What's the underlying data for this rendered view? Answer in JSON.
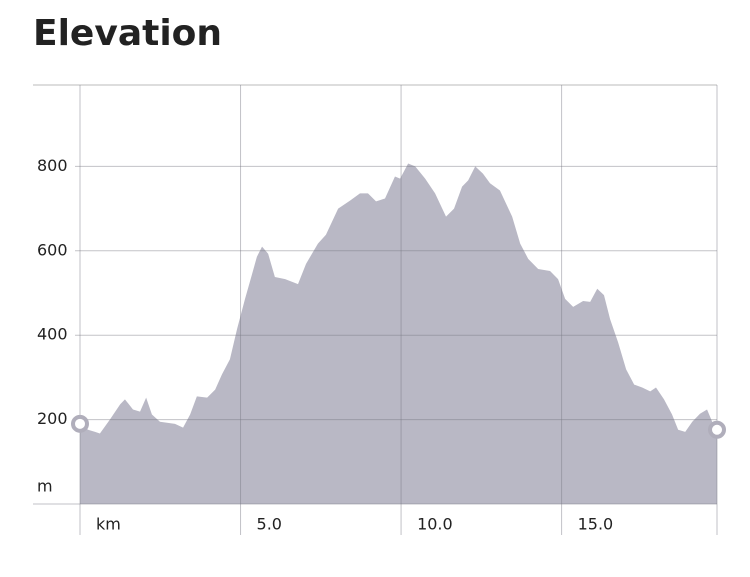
{
  "chart_data": {
    "type": "area",
    "title": "Elevation",
    "color": "#b9b8c5",
    "grid": true,
    "x": [
      0,
      0.25,
      0.47,
      0.62,
      0.93,
      1.25,
      1.4,
      1.65,
      1.87,
      2.06,
      2.24,
      2.49,
      2.96,
      3.21,
      3.43,
      3.64,
      3.96,
      4.21,
      4.42,
      4.67,
      4.89,
      5.14,
      5.36,
      5.51,
      5.67,
      5.86,
      6.07,
      6.39,
      6.79,
      7.04,
      7.41,
      7.66,
      8.04,
      8.41,
      8.72,
      8.97,
      9.22,
      9.5,
      9.81,
      9.97,
      10.22,
      10.44,
      10.75,
      11.06,
      11.4,
      11.65,
      11.9,
      12.09,
      12.31,
      12.55,
      12.77,
      13.08,
      13.46,
      13.71,
      13.96,
      14.27,
      14.64,
      14.89,
      15.11,
      15.36,
      15.67,
      15.89,
      16.11,
      16.32,
      16.51,
      16.76,
      17.01,
      17.26,
      17.51,
      17.76,
      17.94,
      18.19,
      18.44,
      18.63,
      18.85,
      19.07,
      19.31,
      19.53,
      19.69,
      19.84
    ],
    "values": [
      190,
      176,
      171,
      167,
      200,
      236,
      248,
      224,
      219,
      252,
      212,
      195,
      190,
      181,
      212,
      255,
      252,
      271,
      307,
      343,
      414,
      486,
      545,
      586,
      610,
      593,
      538,
      533,
      521,
      569,
      617,
      638,
      700,
      719,
      736,
      736,
      717,
      724,
      776,
      771,
      807,
      800,
      771,
      736,
      681,
      700,
      752,
      767,
      800,
      783,
      760,
      743,
      681,
      617,
      581,
      557,
      552,
      533,
      486,
      467,
      481,
      479,
      510,
      495,
      438,
      383,
      319,
      283,
      276,
      267,
      276,
      248,
      212,
      176,
      171,
      195,
      214,
      224,
      195,
      176
    ],
    "xlim": [
      0,
      19.84
    ],
    "ylim": [
      0,
      1000
    ],
    "xticks": [
      {
        "value": 0,
        "label": "km"
      },
      {
        "value": 5,
        "label": "5.0"
      },
      {
        "value": 10,
        "label": "10.0"
      },
      {
        "value": 15,
        "label": "15.0"
      }
    ],
    "yticks": [
      {
        "value": 0,
        "label": "m"
      },
      200,
      400,
      600,
      800
    ]
  }
}
